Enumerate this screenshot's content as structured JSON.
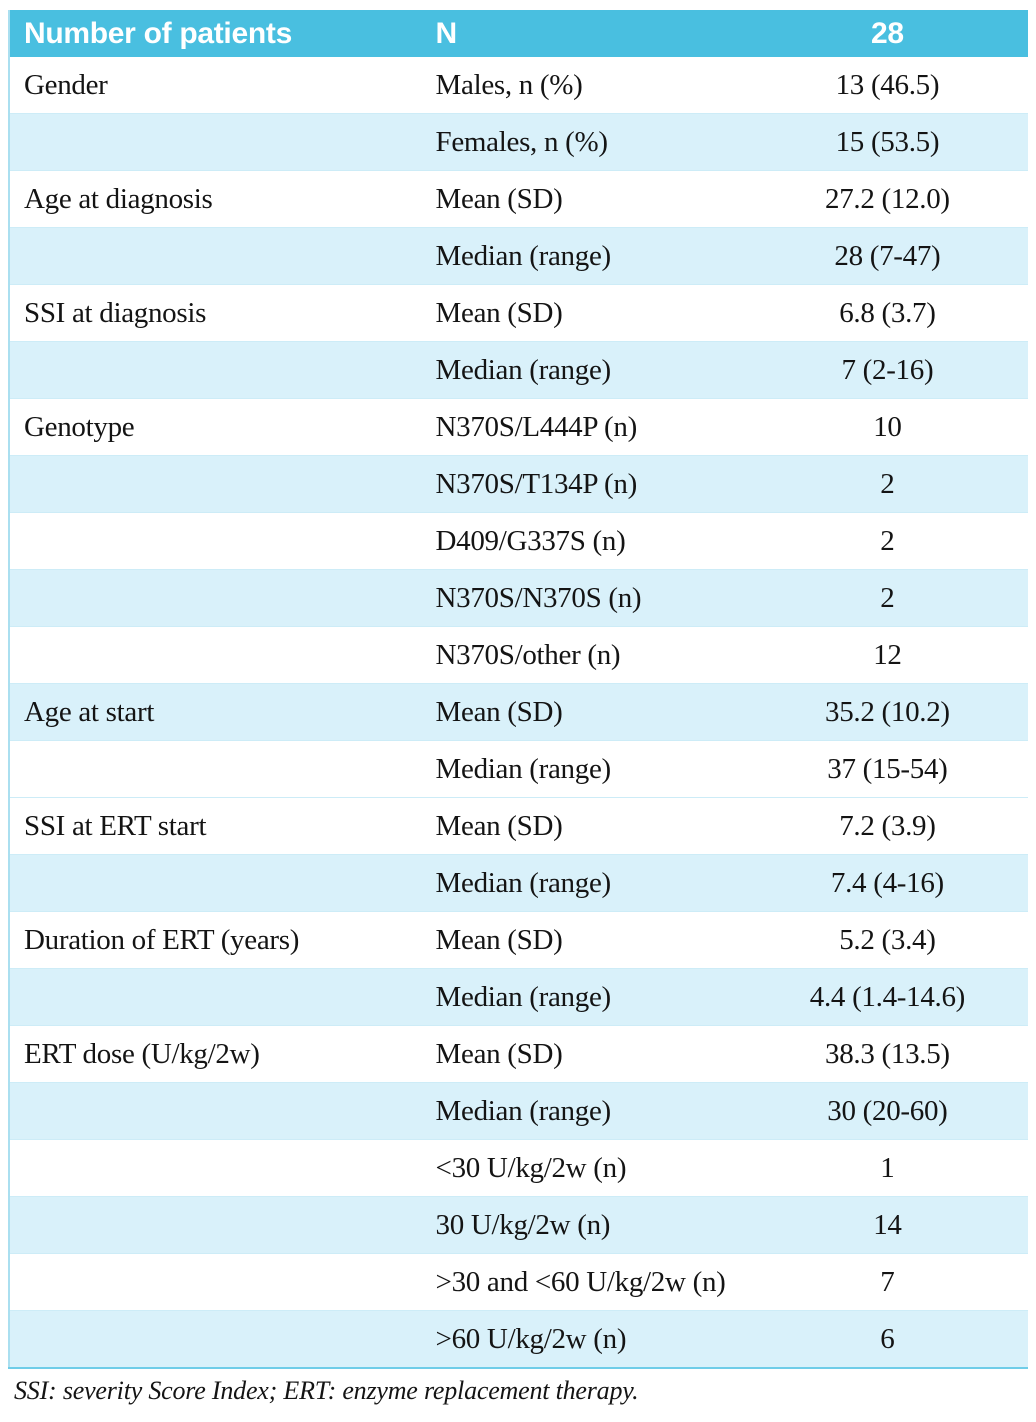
{
  "table": {
    "header": {
      "col1": "Number of patients",
      "col2": "N",
      "col3": "28"
    },
    "rows": [
      {
        "category": "Gender",
        "label": "Males, n (%)",
        "value": "13 (46.5)",
        "shaded": false
      },
      {
        "category": "",
        "label": "Females, n (%)",
        "value": "15 (53.5)",
        "shaded": true
      },
      {
        "category": "Age at diagnosis",
        "label": "Mean (SD)",
        "value": "27.2 (12.0)",
        "shaded": false
      },
      {
        "category": "",
        "label": "Median (range)",
        "value": "28 (7-47)",
        "shaded": true
      },
      {
        "category": "SSI at diagnosis",
        "label": "Mean (SD)",
        "value": "6.8 (3.7)",
        "shaded": false
      },
      {
        "category": "",
        "label": "Median (range)",
        "value": "7 (2-16)",
        "shaded": true
      },
      {
        "category": "Genotype",
        "label": "N370S/L444P (n)",
        "value": "10",
        "shaded": false
      },
      {
        "category": "",
        "label": "N370S/T134P (n)",
        "value": "2",
        "shaded": true
      },
      {
        "category": "",
        "label": "D409/G337S (n)",
        "value": "2",
        "shaded": false
      },
      {
        "category": "",
        "label": "N370S/N370S (n)",
        "value": "2",
        "shaded": true
      },
      {
        "category": "",
        "label": "N370S/other (n)",
        "value": "12",
        "shaded": false
      },
      {
        "category": "Age at start",
        "label": "Mean (SD)",
        "value": "35.2 (10.2)",
        "shaded": true
      },
      {
        "category": "",
        "label": "Median (range)",
        "value": "37 (15-54)",
        "shaded": false
      },
      {
        "category": "SSI at ERT start",
        "label": "Mean (SD)",
        "value": "7.2 (3.9)",
        "shaded": false
      },
      {
        "category": "",
        "label": "Median (range)",
        "value": "7.4 (4-16)",
        "shaded": true
      },
      {
        "category": "Duration of ERT (years)",
        "label": "Mean (SD)",
        "value": "5.2 (3.4)",
        "shaded": false
      },
      {
        "category": "",
        "label": "Median (range)",
        "value": "4.4 (1.4-14.6)",
        "shaded": true
      },
      {
        "category": "ERT dose (U/kg/2w)",
        "label": "Mean (SD)",
        "value": "38.3 (13.5)",
        "shaded": false
      },
      {
        "category": "",
        "label": "Median (range)",
        "value": "30 (20-60)",
        "shaded": true
      },
      {
        "category": "",
        "label": "<30 U/kg/2w (n)",
        "value": "1",
        "shaded": false
      },
      {
        "category": "",
        "label": "30 U/kg/2w (n)",
        "value": "14",
        "shaded": true
      },
      {
        "category": "",
        "label": ">30 and <60 U/kg/2w (n)",
        "value": "7",
        "shaded": false
      },
      {
        "category": "",
        "label": ">60 U/kg/2w (n)",
        "value": "6",
        "shaded": true
      }
    ]
  },
  "footnote": "SSI: severity Score Index; ERT: enzyme replacement therapy.",
  "colors": {
    "header_bg": "#49bfe0",
    "header_text": "#ffffff",
    "row_shaded_bg": "#d9f1fa",
    "row_line": "#cdecf7",
    "rule_soft": "#aadff0",
    "rule_strong": "#6fcde8",
    "body_text": "#141414"
  }
}
